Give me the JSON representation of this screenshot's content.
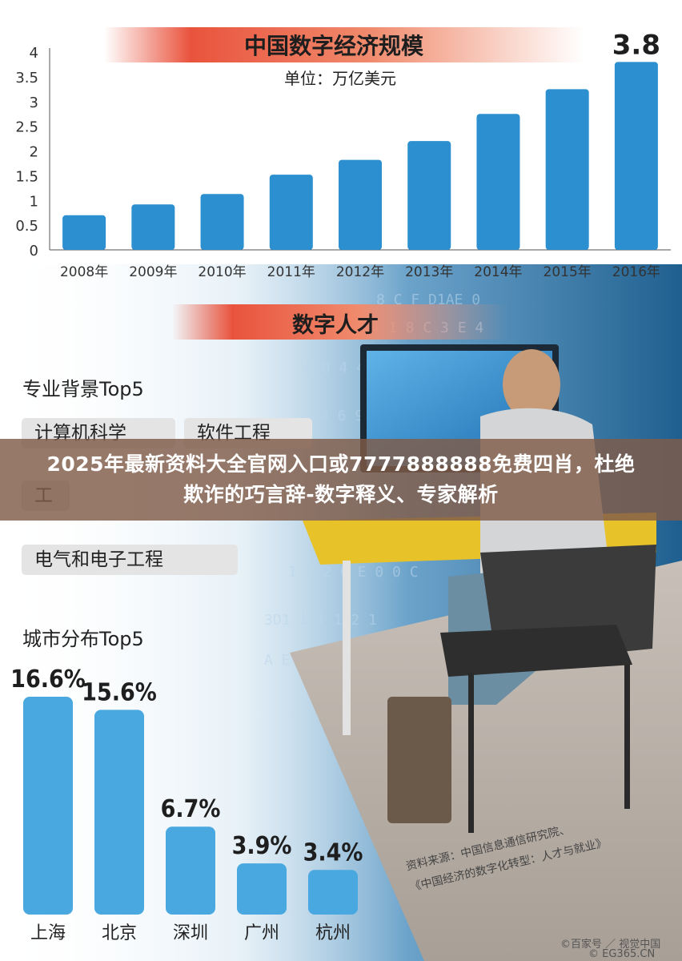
{
  "headline": "2025年最新资料大全官网入口或7777888888免费四肖，杜绝欺诈的巧言辞-数字释义、专家解析",
  "section_titles": {
    "economy": "中国数字经济规模",
    "talent": "数字人才"
  },
  "majors": {
    "heading": "专业背景Top5",
    "items": [
      "计算机科学",
      "软件工程",
      "工",
      "电气和电子工程"
    ]
  },
  "cities_heading": "城市分布Top5",
  "source": {
    "line1": "资料来源：中国信息通信研究院、",
    "line2": "《中国经济的数字化转型：人才与就业》"
  },
  "watermarks": {
    "baijia": "©百家号 ／ 视觉中国",
    "eg": "© EG365.CN"
  },
  "colors": {
    "bar": "#2b8fd0",
    "bar_light": "#4aa8e0",
    "banner": "#e9533d",
    "headline_bg": "#805c48",
    "tech_bg": "#2a6f9f"
  },
  "chart_data": [
    {
      "type": "bar",
      "title": "中国数字经济规模",
      "subtitle": "单位：万亿美元",
      "categories": [
        "2008年",
        "2009年",
        "2010年",
        "2011年",
        "2012年",
        "2013年",
        "2014年",
        "2015年",
        "2016年"
      ],
      "values": [
        0.7,
        0.92,
        1.13,
        1.52,
        1.82,
        2.2,
        2.75,
        3.25,
        3.8
      ],
      "yticks": [
        "0",
        "0.5",
        "1",
        "1.5",
        "2",
        "2.5",
        "3",
        "3.5",
        "4"
      ],
      "ylim": [
        0,
        4
      ],
      "data_labels": {
        "2016年": "3.8"
      },
      "grid": false
    },
    {
      "type": "bar",
      "title": "城市分布Top5",
      "categories": [
        "上海",
        "北京",
        "深圳",
        "广州",
        "杭州"
      ],
      "values": [
        16.6,
        15.6,
        6.7,
        3.9,
        3.4
      ],
      "labels": [
        "16.6%",
        "15.6%",
        "6.7%",
        "3.9%",
        "3.4%"
      ],
      "grid": false
    }
  ]
}
